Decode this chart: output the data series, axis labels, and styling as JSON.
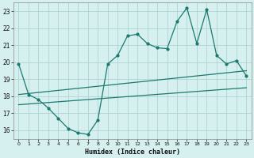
{
  "title": "",
  "xlabel": "Humidex (Indice chaleur)",
  "ylabel": "",
  "bg_color": "#d6efef",
  "line_color": "#1a7a6e",
  "grid_color": "#aed4d4",
  "xlim": [
    -0.5,
    23.5
  ],
  "ylim": [
    15.5,
    23.5
  ],
  "yticks": [
    16,
    17,
    18,
    19,
    20,
    21,
    22,
    23
  ],
  "xticks": [
    0,
    1,
    2,
    3,
    4,
    5,
    6,
    7,
    8,
    9,
    10,
    11,
    12,
    13,
    14,
    15,
    16,
    17,
    18,
    19,
    20,
    21,
    22,
    23
  ],
  "line1_x": [
    0,
    1,
    2,
    3,
    4,
    5,
    6,
    7,
    8,
    9,
    10,
    11,
    12,
    13,
    14,
    15,
    16,
    17,
    18,
    19,
    20,
    21,
    22,
    23
  ],
  "line1_y": [
    19.9,
    18.1,
    17.8,
    17.3,
    16.7,
    16.1,
    15.85,
    15.75,
    16.6,
    19.9,
    20.4,
    21.55,
    21.65,
    21.1,
    20.85,
    20.8,
    22.4,
    23.2,
    21.1,
    23.1,
    20.4,
    19.9,
    20.1,
    19.2
  ],
  "line2_x": [
    0,
    23
  ],
  "line2_y": [
    18.1,
    19.5
  ],
  "line3_x": [
    0,
    23
  ],
  "line3_y": [
    17.5,
    18.5
  ],
  "marker_size": 2.0,
  "line_width": 0.9
}
